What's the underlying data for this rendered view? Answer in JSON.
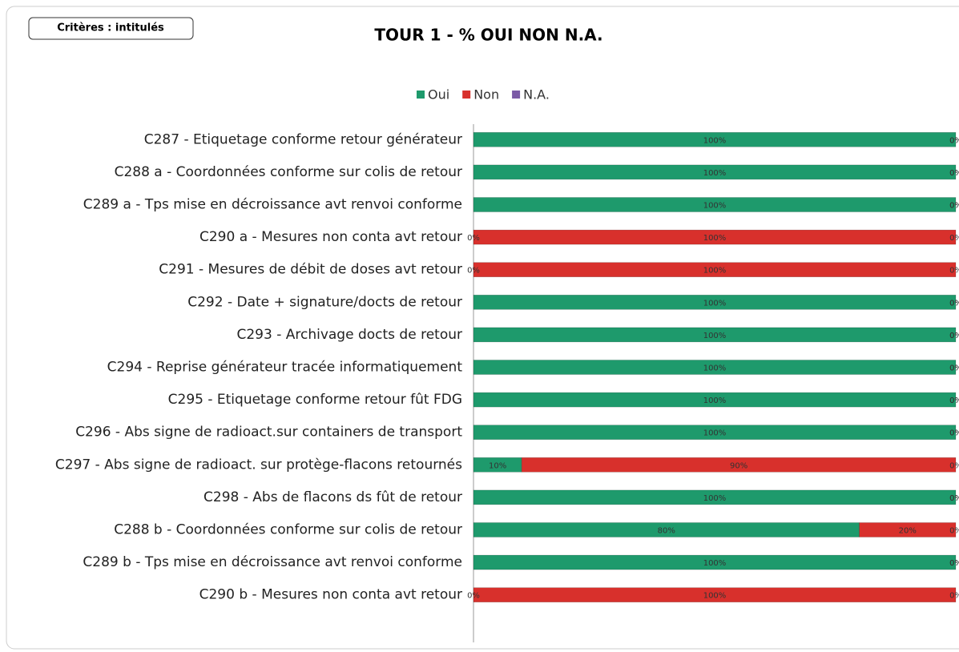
{
  "filter_button": "Critères : intitulés",
  "chart_data": {
    "type": "bar-stacked-horizontal",
    "title": "TOUR 1  - % OUI NON N.A.",
    "categories": [
      "C287 - Etiquetage conforme retour générateur",
      "C288 a - Coordonnées conforme sur colis de retour",
      "C289 a - Tps mise en décroissance avt renvoi conforme",
      "C290 a - Mesures non conta avt retour",
      "C291 - Mesures de débit de doses avt retour",
      "C292 - Date + signature/docts de retour",
      "C293 - Archivage docts de retour",
      "C294 - Reprise générateur tracée informatiquement",
      "C295 - Etiquetage conforme retour fût FDG",
      "C296 - Abs signe de radioact.sur containers de transport",
      "C297 - Abs signe de radioact. sur protège-flacons retournés",
      "C298 - Abs de flacons ds fût de retour",
      "C288 b - Coordonnées conforme sur colis de retour",
      "C289 b - Tps mise en décroissance avt renvoi conforme",
      "C290 b - Mesures non conta avt retour"
    ],
    "series": [
      {
        "name": "Oui",
        "color": "#1e9a6c",
        "values": [
          100,
          100,
          100,
          0,
          0,
          100,
          100,
          100,
          100,
          100,
          10,
          100,
          80,
          100,
          0
        ],
        "value_labels": [
          "100%",
          "100%",
          "100%",
          "0%",
          "0%",
          "100%",
          "100%",
          "100%",
          "100%",
          "100%",
          "10%",
          "100%",
          "80%",
          "100%",
          "0%"
        ]
      },
      {
        "name": "Non",
        "color": "#d8302c",
        "values": [
          0,
          0,
          0,
          100,
          100,
          0,
          0,
          0,
          0,
          0,
          90,
          0,
          20,
          0,
          100
        ],
        "value_labels": [
          "0%",
          "0%",
          "0%",
          "100%",
          "100%",
          "0%",
          "0%",
          "0%",
          "0%",
          "0%",
          "90%",
          "0%",
          "20%",
          "0%",
          "100%"
        ]
      },
      {
        "name": "N.A.",
        "color": "#7b5aa6",
        "values": [
          0,
          0,
          0,
          0,
          0,
          0,
          0,
          0,
          0,
          0,
          0,
          0,
          0,
          0,
          0
        ],
        "value_labels": [
          "0%",
          "0%",
          "0%",
          "0%",
          "0%",
          "0%",
          "0%",
          "0%",
          "0%",
          "0%",
          "0%",
          "0%",
          "0%",
          "0%",
          "0%"
        ]
      }
    ],
    "xlim": [
      0,
      100
    ],
    "legend": "top"
  }
}
